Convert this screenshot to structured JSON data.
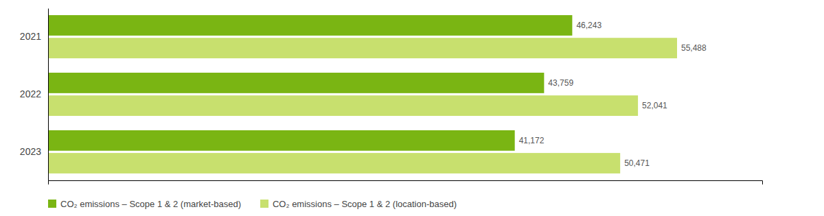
{
  "chart_data": {
    "type": "bar",
    "orientation": "horizontal",
    "categories": [
      "2021",
      "2022",
      "2023"
    ],
    "series": [
      {
        "name": "CO₂ emissions – Scope 1 & 2 (market-based)",
        "color": "#7ab513",
        "values": [
          46243,
          43759,
          41172
        ],
        "value_labels": [
          "46,243",
          "43,759",
          "41,172"
        ]
      },
      {
        "name": "CO₂ emissions – Scope 1 & 2 (location-based)",
        "color": "#c8e06e",
        "values": [
          55488,
          52041,
          50471
        ],
        "value_labels": [
          "55,488",
          "52,041",
          "50,471"
        ]
      }
    ],
    "xlim": [
      0,
      63000
    ],
    "data_labels": true,
    "tick_labels": "y",
    "grid": false,
    "legend": "bottom"
  }
}
